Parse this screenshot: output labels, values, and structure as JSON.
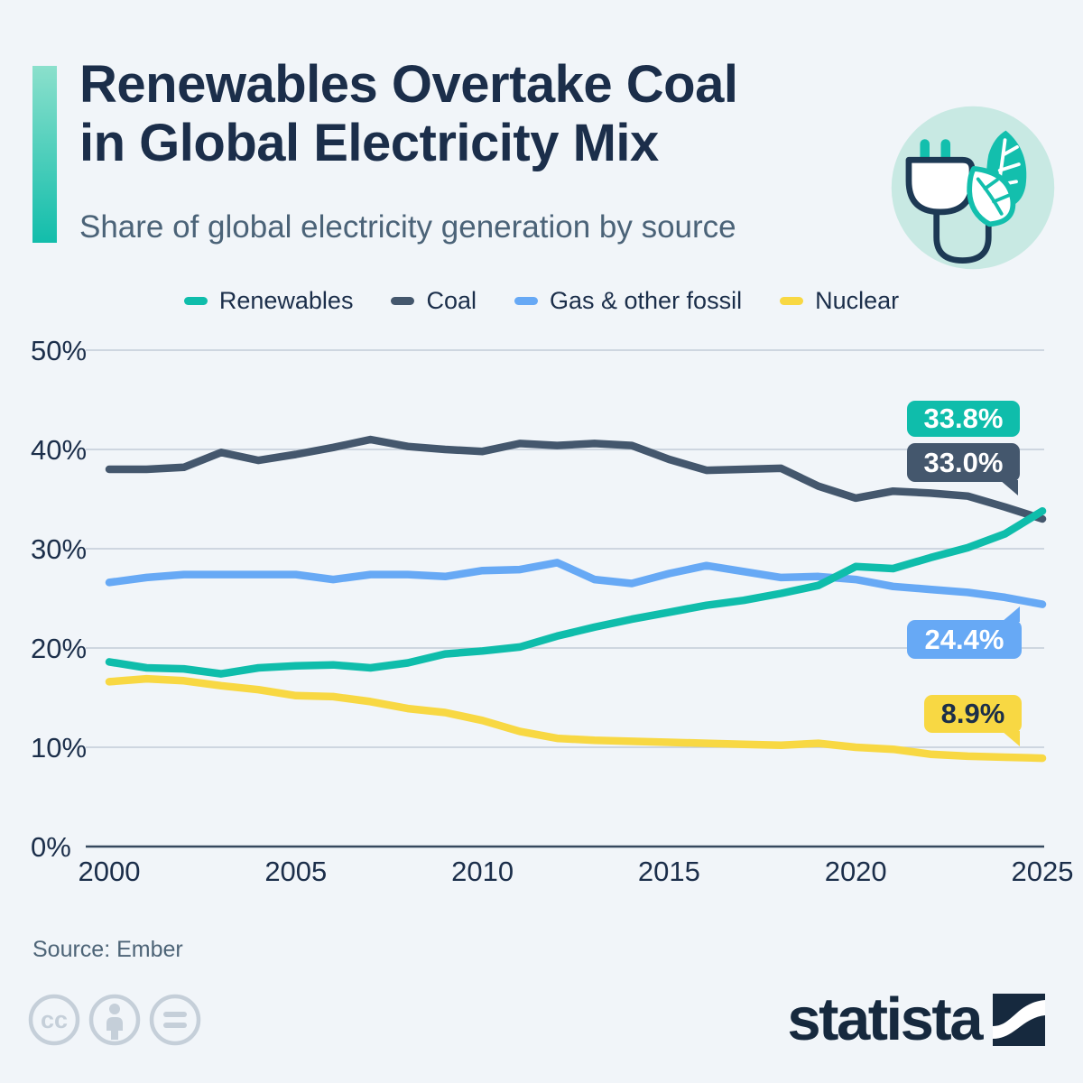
{
  "header": {
    "title_line1": "Renewables Overtake Coal",
    "title_line2": "in Global Electricity Mix",
    "subtitle": "Share of global electricity generation by source"
  },
  "chart_data": {
    "type": "line",
    "title": "Share of global electricity generation by source",
    "x": [
      2000,
      2001,
      2002,
      2003,
      2004,
      2005,
      2006,
      2007,
      2008,
      2009,
      2010,
      2011,
      2012,
      2013,
      2014,
      2015,
      2016,
      2017,
      2018,
      2019,
      2020,
      2021,
      2022,
      2023,
      2024,
      2025
    ],
    "x_tick_labels": [
      "2000",
      "2005",
      "2010",
      "2015",
      "2020",
      "2025"
    ],
    "y_ticks": [
      0,
      10,
      20,
      30,
      40,
      50
    ],
    "y_tick_labels": [
      "0%",
      "10%",
      "20%",
      "30%",
      "40%",
      "50%"
    ],
    "ylim": [
      0,
      50
    ],
    "grid": "horizontal",
    "legend_position": "top",
    "series": [
      {
        "name": "Renewables",
        "color": "#0fbdab",
        "end_label": "33.8%",
        "values": [
          18.6,
          18.0,
          17.9,
          17.4,
          18.0,
          18.2,
          18.3,
          18.0,
          18.5,
          19.4,
          19.7,
          20.1,
          21.2,
          22.1,
          22.9,
          23.6,
          24.3,
          24.8,
          25.5,
          26.3,
          28.2,
          28.0,
          29.1,
          30.1,
          31.5,
          33.8
        ]
      },
      {
        "name": "Coal",
        "color": "#44576d",
        "end_label": "33.0%",
        "values": [
          38.0,
          38.0,
          38.2,
          39.7,
          38.9,
          39.5,
          40.2,
          41.0,
          40.3,
          40.0,
          39.8,
          40.6,
          40.4,
          40.6,
          40.4,
          39.0,
          37.9,
          38.0,
          38.1,
          36.3,
          35.1,
          35.8,
          35.6,
          35.3,
          34.2,
          33.0
        ]
      },
      {
        "name": "Gas & other fossil",
        "color": "#67a9f5",
        "end_label": "24.4%",
        "values": [
          26.6,
          27.1,
          27.4,
          27.4,
          27.4,
          27.4,
          26.9,
          27.4,
          27.4,
          27.2,
          27.8,
          27.9,
          28.6,
          26.9,
          26.5,
          27.5,
          28.3,
          27.7,
          27.1,
          27.2,
          26.9,
          26.2,
          25.9,
          25.6,
          25.1,
          24.4
        ]
      },
      {
        "name": "Nuclear",
        "color": "#f8d843",
        "end_label": "8.9%",
        "values": [
          16.6,
          16.9,
          16.7,
          16.2,
          15.8,
          15.2,
          15.1,
          14.6,
          13.9,
          13.5,
          12.7,
          11.6,
          10.9,
          10.7,
          10.6,
          10.5,
          10.4,
          10.3,
          10.2,
          10.4,
          10.0,
          9.8,
          9.3,
          9.1,
          9.0,
          8.9
        ]
      }
    ]
  },
  "colors": {
    "background": "#f1f5f9",
    "title_text": "#1b2e4a",
    "subtitle_text": "#4b6378",
    "grid_line": "#c2ccd7",
    "axis_line": "#36495e",
    "accent_gradient_top": "#8be0cc",
    "accent_gradient_bottom": "#12bdab",
    "icon_circle": "#c8e9e3",
    "cc_icon": "#c5cfd9",
    "brand_navy": "#16293e"
  },
  "footer": {
    "source": "Source: Ember",
    "brand": "statista"
  }
}
